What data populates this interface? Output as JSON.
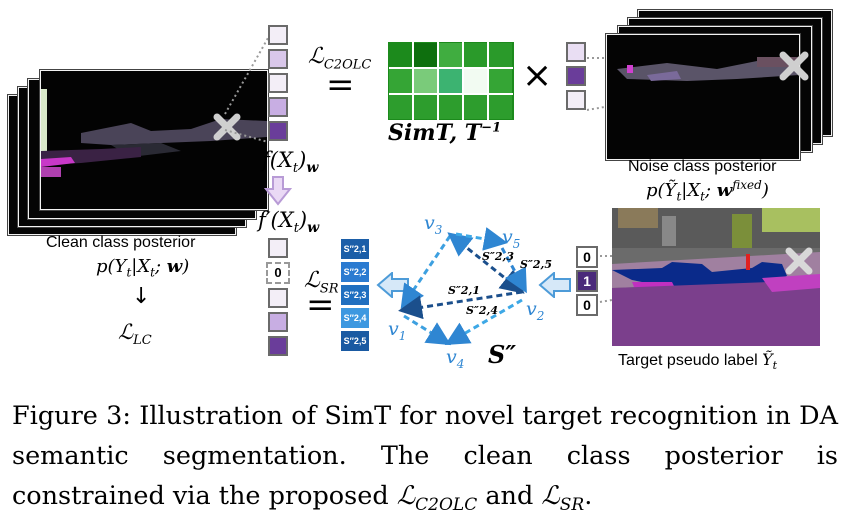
{
  "figure": {
    "loss_c2olc": "ℒ",
    "loss_c2olc_sub": "C2OLC",
    "simt_label": "SimT, T",
    "simt_sup": "−1",
    "times_symbol": "×",
    "f_label": "f(X",
    "f_label_sub": "t",
    "f_label_tail": ")",
    "f_label_w": "w",
    "fprime_label": "f′(X",
    "fprime_label_sub": "t",
    "fprime_label_tail": ")",
    "fprime_label_w": "w",
    "loss_sr": "ℒ",
    "loss_sr_sub": "SR",
    "equals": "=",
    "zero_in_column": "0",
    "clean_title": "Clean class posterior",
    "clean_formula_a": "p(Y",
    "clean_formula_sub": "t",
    "clean_formula_b": "|X",
    "clean_formula_sub2": "t",
    "clean_formula_c": "; ",
    "clean_formula_w": "w",
    "clean_formula_d": ")",
    "arrow_down": "↓",
    "loss_lc": "ℒ",
    "loss_lc_sub": "LC",
    "noise_title": "Noise class posterior",
    "noise_formula_a": "p(",
    "noise_formula_y": "Ỹ",
    "noise_formula_sub": "t",
    "noise_formula_b": "|X",
    "noise_formula_sub2": "t",
    "noise_formula_c": "; ",
    "noise_formula_w": "w",
    "noise_formula_sup": "fixed",
    "noise_formula_d": ")",
    "target_title": "Target pseudo label ",
    "target_y": "Ỹ",
    "target_sub": "t",
    "s_entries": [
      "S″2,1",
      "S″2,2",
      "S″2,3",
      "S″2,4",
      "S″2,5"
    ],
    "binary_values": [
      "0",
      "1",
      "0"
    ],
    "graph_nodes": [
      {
        "name": "v",
        "sub": "1"
      },
      {
        "name": "v",
        "sub": "2"
      },
      {
        "name": "v",
        "sub": "3"
      },
      {
        "name": "v",
        "sub": "4"
      },
      {
        "name": "v",
        "sub": "5"
      }
    ],
    "edge_labels": [
      "S″2,3",
      "S″2,5",
      "S″2,1",
      "S″2,4"
    ],
    "s_matrix_label": "S″"
  },
  "caption": {
    "text_a": "Figure 3: Illustration of SimT for novel target recognition in DA semantic segmentation. The clean class posterior is constrained via the proposed ",
    "loss1": "ℒ",
    "loss1_sub": "C2OLC",
    "text_b": " and ",
    "loss2": "ℒ",
    "loss2_sub": "SR",
    "text_c": "."
  },
  "colors": {
    "light_purple": "#e6dcef",
    "mid_purple": "#b89bd6",
    "dark_purple": "#6a3d9a",
    "green_dark": "#1e8a1e",
    "green_mid": "#3cab3c",
    "blue_dark": "#1b5ea8",
    "blue_mid": "#2b7bd1",
    "blue_light": "#3da8e6",
    "arrow_blue": "#4d9bd8"
  }
}
